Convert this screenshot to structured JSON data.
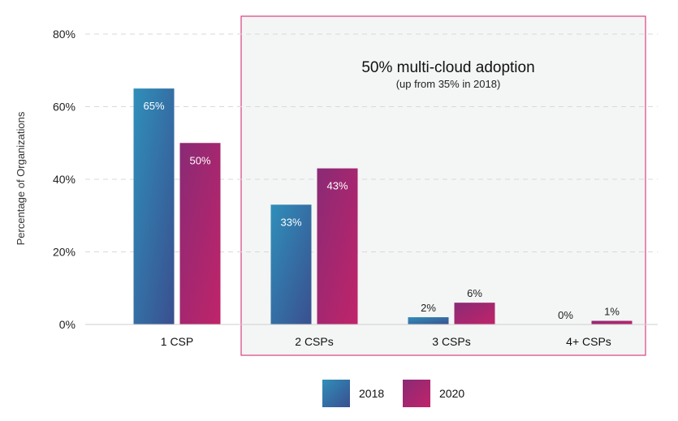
{
  "chart_data": {
    "type": "bar",
    "categories": [
      "1 CSP",
      "2 CSPs",
      "3 CSPs",
      "4+ CSPs"
    ],
    "series": [
      {
        "name": "2018",
        "values": [
          65,
          33,
          2,
          0
        ],
        "labels": [
          "65%",
          "33%",
          "2%",
          "0%"
        ],
        "color": "#2f73a6"
      },
      {
        "name": "2020",
        "values": [
          50,
          43,
          6,
          1
        ],
        "labels": [
          "50%",
          "43%",
          "6%",
          "1%"
        ],
        "color": "#a12a6c"
      }
    ],
    "ylabel": "Percentage of Organizations",
    "ylim": [
      0,
      80
    ],
    "yticks": [
      0,
      20,
      40,
      60,
      80
    ],
    "ytick_labels": [
      "0%",
      "20%",
      "40%",
      "60%",
      "80%"
    ],
    "grid": true,
    "legend_position": "bottom-center",
    "annotation": {
      "title": "50% multi-cloud adoption",
      "subtitle": "(up from 35% in 2018)",
      "border_color": "#d9417f",
      "fill_color": "#f4f5f5"
    }
  }
}
